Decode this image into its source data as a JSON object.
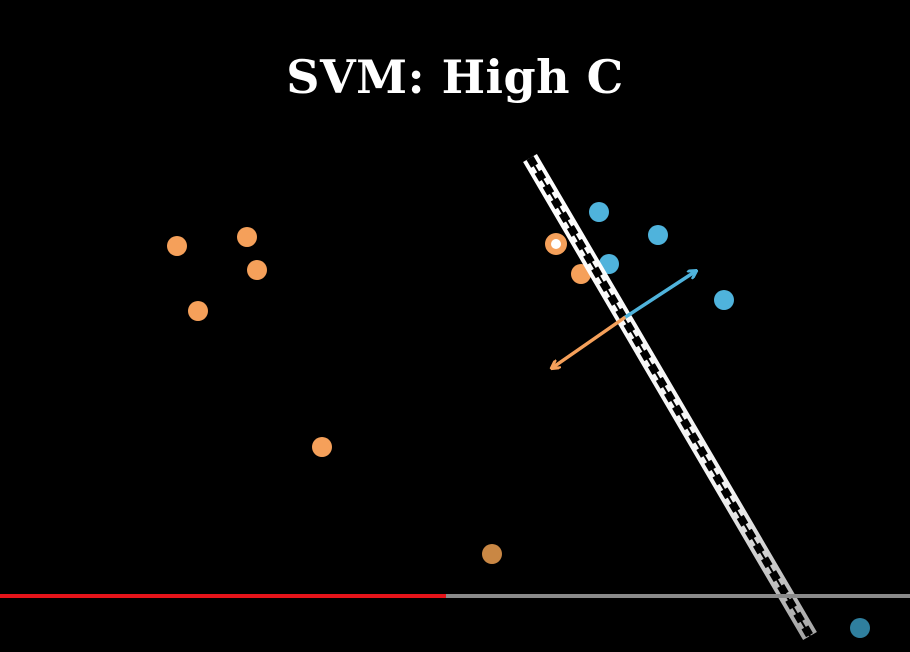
{
  "video": {
    "title": "SVM: High C",
    "progress_fraction": 0.49
  },
  "colors": {
    "orange": "#f5a05a",
    "blue": "#4fb3dc",
    "boundary": "#ffffff",
    "progress_played": "#e5141a",
    "progress_remaining": "#8a8a8a"
  }
}
